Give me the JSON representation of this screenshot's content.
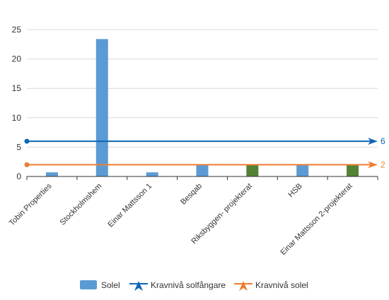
{
  "chart_data": {
    "type": "bar",
    "categories": [
      "Tobin Properties",
      "Stockholmshem",
      "Einar Mattsson 1",
      "Besqab",
      "Riksbyggen- projekterat",
      "HSB",
      "Einar Mattsson 2-projekterat"
    ],
    "series": [
      {
        "name": "Solel",
        "values": [
          0.7,
          23.4,
          0.7,
          2.0,
          2.0,
          2.0,
          2.0
        ],
        "colors": [
          "#5b9bd5",
          "#5b9bd5",
          "#5b9bd5",
          "#5b9bd5",
          "#548235",
          "#5b9bd5",
          "#548235"
        ]
      }
    ],
    "reference_lines": [
      {
        "name": "Kravnivå solfångare",
        "value": 6,
        "label": "6",
        "color": "#0e66b5"
      },
      {
        "name": "Kravnivå solel",
        "value": 2,
        "label": "2",
        "color": "#ed7d31"
      }
    ],
    "ylim": [
      0,
      25
    ],
    "yticks": [
      "0",
      "5",
      "10",
      "15",
      "20",
      "25"
    ],
    "grid": true,
    "legend_position": "bottom",
    "legend": [
      {
        "label": "Solel",
        "kind": "bar",
        "color": "#5b9bd5"
      },
      {
        "label": "Kravnivå solfångare",
        "kind": "line",
        "color": "#0e66b5"
      },
      {
        "label": "Kravnivå solel",
        "kind": "line",
        "color": "#ed7d31"
      }
    ]
  }
}
